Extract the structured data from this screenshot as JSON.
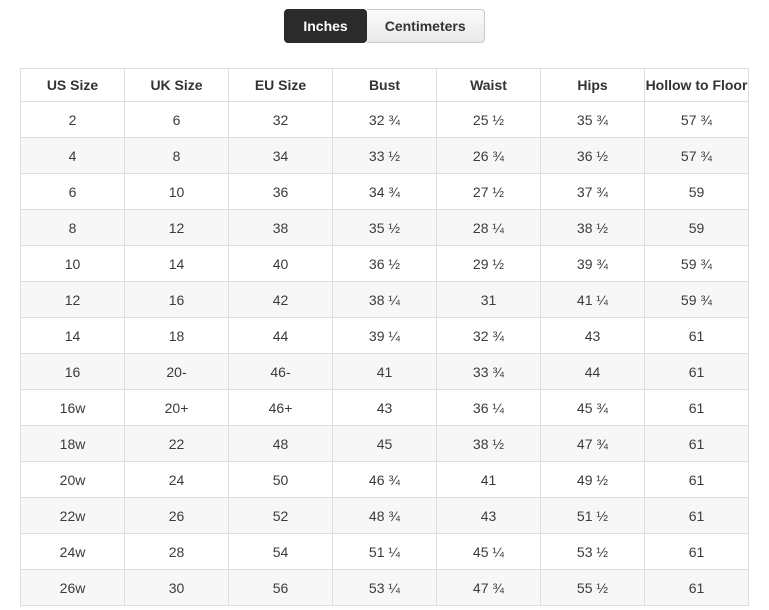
{
  "tabs": [
    {
      "label": "Inches",
      "active": true
    },
    {
      "label": "Centimeters",
      "active": false
    }
  ],
  "colors": {
    "active_tab_bg": "#2b2b2b",
    "active_tab_text": "#ffffff",
    "inactive_tab_bg": "#efefef",
    "inactive_tab_border": "#c9c9c9",
    "table_border": "#dedede",
    "row_alt_bg": "#f7f7f7",
    "text": "#3b3b3b"
  },
  "table": {
    "unit_selected": "Inches",
    "columns": [
      "US Size",
      "UK Size",
      "EU Size",
      "Bust",
      "Waist",
      "Hips",
      "Hollow to Floor"
    ],
    "rows": [
      [
        "2",
        "6",
        "32",
        "32 ¾",
        "25 ½",
        "35 ¾",
        "57 ¾"
      ],
      [
        "4",
        "8",
        "34",
        "33 ½",
        "26 ¾",
        "36 ½",
        "57 ¾"
      ],
      [
        "6",
        "10",
        "36",
        "34 ¾",
        "27 ½",
        "37 ¾",
        "59"
      ],
      [
        "8",
        "12",
        "38",
        "35 ½",
        "28 ¼",
        "38 ½",
        "59"
      ],
      [
        "10",
        "14",
        "40",
        "36 ½",
        "29 ½",
        "39 ¾",
        "59 ¾"
      ],
      [
        "12",
        "16",
        "42",
        "38 ¼",
        "31",
        "41 ¼",
        "59 ¾"
      ],
      [
        "14",
        "18",
        "44",
        "39 ¼",
        "32 ¾",
        "43",
        "61"
      ],
      [
        "16",
        "20-",
        "46-",
        "41",
        "33 ¾",
        "44",
        "61"
      ],
      [
        "16w",
        "20+",
        "46+",
        "43",
        "36 ¼",
        "45 ¾",
        "61"
      ],
      [
        "18w",
        "22",
        "48",
        "45",
        "38 ½",
        "47 ¾",
        "61"
      ],
      [
        "20w",
        "24",
        "50",
        "46 ¾",
        "41",
        "49 ½",
        "61"
      ],
      [
        "22w",
        "26",
        "52",
        "48 ¾",
        "43",
        "51 ½",
        "61"
      ],
      [
        "24w",
        "28",
        "54",
        "51 ¼",
        "45 ¼",
        "53 ½",
        "61"
      ],
      [
        "26w",
        "30",
        "56",
        "53 ¼",
        "47 ¾",
        "55 ½",
        "61"
      ]
    ]
  }
}
